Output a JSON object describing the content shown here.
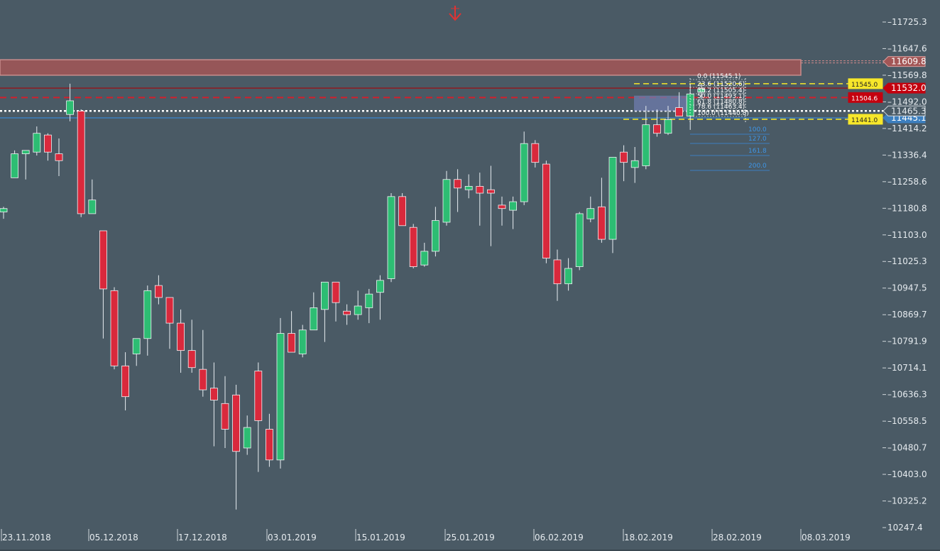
{
  "colors": {
    "background": "#4a5a65",
    "bull": "#2dbd73",
    "bear": "#d9293c",
    "wick": "#e8eef2",
    "resistance_zone": "#a35656",
    "fib_zone": "#6f7cae",
    "yellow": "#f7e72a",
    "red_level": "#c4000e",
    "blue_level": "#3c7fbf",
    "marker_red": "#e23232"
  },
  "chart_data": {
    "type": "candlestick",
    "title": "",
    "xlabel": "",
    "ylabel": "",
    "ylim": [
      10247.4,
      11770
    ],
    "y_ticks": [
      "11725.3",
      "11647.6",
      "11569.8",
      "11492.0",
      "11414.2",
      "11336.4",
      "11258.6",
      "11180.8",
      "11103.0",
      "11025.3",
      "10947.5",
      "10869.7",
      "10791.9",
      "10714.1",
      "10636.3",
      "10558.5",
      "10480.7",
      "10403.0",
      "10325.2",
      "10247.4"
    ],
    "x_ticks": [
      "23.11.2018",
      "05.12.2018",
      "17.12.2018",
      "03.01.2019",
      "15.01.2019",
      "25.01.2019",
      "06.02.2019",
      "18.02.2019",
      "28.02.2019",
      "08.03.2019"
    ],
    "candles": [
      {
        "o": 11170,
        "h": 11185,
        "l": 11150,
        "c": 11180
      },
      {
        "o": 11270,
        "h": 11350,
        "l": 11270,
        "c": 11340
      },
      {
        "o": 11340,
        "h": 11345,
        "l": 11265,
        "c": 11350
      },
      {
        "o": 11345,
        "h": 11420,
        "l": 11335,
        "c": 11400
      },
      {
        "o": 11395,
        "h": 11400,
        "l": 11320,
        "c": 11345
      },
      {
        "o": 11340,
        "h": 11385,
        "l": 11275,
        "c": 11320
      },
      {
        "o": 11455,
        "h": 11545,
        "l": 11435,
        "c": 11495
      },
      {
        "o": 11465,
        "h": 11470,
        "l": 11155,
        "c": 11165
      },
      {
        "o": 11165,
        "h": 11265,
        "l": 11165,
        "c": 11205
      },
      {
        "o": 11115,
        "h": 11115,
        "l": 10800,
        "c": 10945
      },
      {
        "o": 10940,
        "h": 10950,
        "l": 10710,
        "c": 10720
      },
      {
        "o": 10720,
        "h": 10760,
        "l": 10590,
        "c": 10630
      },
      {
        "o": 10755,
        "h": 10790,
        "l": 10720,
        "c": 10800
      },
      {
        "o": 10800,
        "h": 10955,
        "l": 10750,
        "c": 10940
      },
      {
        "o": 10955,
        "h": 10985,
        "l": 10900,
        "c": 10920
      },
      {
        "o": 10920,
        "h": 10920,
        "l": 10770,
        "c": 10845
      },
      {
        "o": 10845,
        "h": 10885,
        "l": 10700,
        "c": 10765
      },
      {
        "o": 10765,
        "h": 10855,
        "l": 10700,
        "c": 10715
      },
      {
        "o": 10710,
        "h": 10825,
        "l": 10630,
        "c": 10650
      },
      {
        "o": 10655,
        "h": 10730,
        "l": 10485,
        "c": 10620
      },
      {
        "o": 10610,
        "h": 10690,
        "l": 10480,
        "c": 10535
      },
      {
        "o": 10635,
        "h": 10665,
        "l": 10300,
        "c": 10470
      },
      {
        "o": 10480,
        "h": 10575,
        "l": 10460,
        "c": 10540
      },
      {
        "o": 10705,
        "h": 10730,
        "l": 10410,
        "c": 10560
      },
      {
        "o": 10535,
        "h": 10580,
        "l": 10425,
        "c": 10445
      },
      {
        "o": 10445,
        "h": 10860,
        "l": 10420,
        "c": 10815
      },
      {
        "o": 10815,
        "h": 10880,
        "l": 10760,
        "c": 10760
      },
      {
        "o": 10755,
        "h": 10840,
        "l": 10745,
        "c": 10825
      },
      {
        "o": 10825,
        "h": 10935,
        "l": 10825,
        "c": 10890
      },
      {
        "o": 10885,
        "h": 10965,
        "l": 10790,
        "c": 10965
      },
      {
        "o": 10965,
        "h": 10965,
        "l": 10850,
        "c": 10905
      },
      {
        "o": 10880,
        "h": 10900,
        "l": 10840,
        "c": 10870
      },
      {
        "o": 10870,
        "h": 10940,
        "l": 10855,
        "c": 10895
      },
      {
        "o": 10890,
        "h": 10945,
        "l": 10845,
        "c": 10930
      },
      {
        "o": 10935,
        "h": 10985,
        "l": 10855,
        "c": 10970
      },
      {
        "o": 10975,
        "h": 11225,
        "l": 10965,
        "c": 11215
      },
      {
        "o": 11215,
        "h": 11225,
        "l": 11140,
        "c": 11130
      },
      {
        "o": 11125,
        "h": 11135,
        "l": 11005,
        "c": 11010
      },
      {
        "o": 11015,
        "h": 11080,
        "l": 11010,
        "c": 11055
      },
      {
        "o": 11055,
        "h": 11185,
        "l": 11040,
        "c": 11145
      },
      {
        "o": 11140,
        "h": 11290,
        "l": 11130,
        "c": 11265
      },
      {
        "o": 11265,
        "h": 11295,
        "l": 11170,
        "c": 11240
      },
      {
        "o": 11235,
        "h": 11280,
        "l": 11210,
        "c": 11245
      },
      {
        "o": 11245,
        "h": 11285,
        "l": 11130,
        "c": 11225
      },
      {
        "o": 11235,
        "h": 11305,
        "l": 11070,
        "c": 11225
      },
      {
        "o": 11190,
        "h": 11215,
        "l": 11130,
        "c": 11180
      },
      {
        "o": 11175,
        "h": 11215,
        "l": 11120,
        "c": 11200
      },
      {
        "o": 11200,
        "h": 11405,
        "l": 11190,
        "c": 11370
      },
      {
        "o": 11370,
        "h": 11380,
        "l": 11300,
        "c": 11315
      },
      {
        "o": 11310,
        "h": 11320,
        "l": 11020,
        "c": 11035
      },
      {
        "o": 11030,
        "h": 11060,
        "l": 10910,
        "c": 10960
      },
      {
        "o": 10960,
        "h": 11035,
        "l": 10940,
        "c": 11005
      },
      {
        "o": 11010,
        "h": 11170,
        "l": 11000,
        "c": 11165
      },
      {
        "o": 11150,
        "h": 11215,
        "l": 11140,
        "c": 11180
      },
      {
        "o": 11185,
        "h": 11270,
        "l": 11080,
        "c": 11090
      },
      {
        "o": 11090,
        "h": 11330,
        "l": 11050,
        "c": 11330
      },
      {
        "o": 11345,
        "h": 11365,
        "l": 11260,
        "c": 11315
      },
      {
        "o": 11300,
        "h": 11360,
        "l": 11255,
        "c": 11320
      },
      {
        "o": 11305,
        "h": 11480,
        "l": 11295,
        "c": 11425
      },
      {
        "o": 11425,
        "h": 11470,
        "l": 11390,
        "c": 11400
      },
      {
        "o": 11400,
        "h": 11480,
        "l": 11395,
        "c": 11440
      },
      {
        "o": 11475,
        "h": 11520,
        "l": 11455,
        "c": 11450
      },
      {
        "o": 11450,
        "h": 11545,
        "l": 11410,
        "c": 11515
      },
      {
        "o": 11520,
        "h": 11545,
        "l": 11500,
        "c": 11530
      }
    ],
    "levels": {
      "resistance_zone": {
        "from": 11569.8,
        "to": 11615.0,
        "label": "11609.8"
      },
      "red_line": {
        "price": 11532.0,
        "label": "11532.0"
      },
      "red_dashed": {
        "price": 11504.6,
        "label": "11504.6"
      },
      "white_dotted": {
        "price": 11465.3,
        "label": "11465.3"
      },
      "blue_line": {
        "price": 11445.1,
        "label": "11445.1"
      },
      "yellow_top": {
        "price": 11545.0,
        "label": "11545.0"
      },
      "yellow_bottom": {
        "price": 11441.0,
        "label": "11441.0"
      }
    },
    "fib_labels": [
      "0.0 (11545.1)",
      "23.6 (11520.6)",
      "38.2 (11505.4)",
      "50.0 (11493.1)",
      "61.8 (11480.8)",
      "78.6 (11463.4)",
      "100.0 (11440.8)"
    ],
    "fib_ext_labels": [
      "100.0",
      "127.0",
      "161.8",
      "200.0"
    ]
  }
}
